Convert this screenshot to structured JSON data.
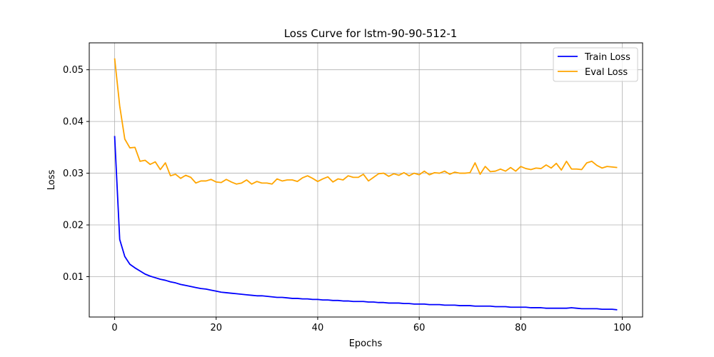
{
  "chart_data": {
    "type": "line",
    "title": "Loss Curve for lstm-90-90-512-1",
    "xlabel": "Epochs",
    "ylabel": "Loss",
    "xlim": [
      -5,
      104
    ],
    "ylim": [
      0.0022,
      0.0552
    ],
    "xticks": [
      0,
      20,
      40,
      60,
      80,
      100
    ],
    "xtick_labels": [
      "0",
      "20",
      "40",
      "60",
      "80",
      "100"
    ],
    "yticks": [
      0.01,
      0.02,
      0.03,
      0.04,
      0.05
    ],
    "ytick_labels": [
      "0.01",
      "0.02",
      "0.03",
      "0.04",
      "0.05"
    ],
    "grid": true,
    "legend_position": "top-right",
    "series": [
      {
        "name": "Train Loss",
        "color": "#0000ff",
        "x_start": 0,
        "values": [
          0.0372,
          0.0172,
          0.0139,
          0.0124,
          0.0117,
          0.0111,
          0.0105,
          0.0101,
          0.0098,
          0.0095,
          0.0093,
          0.009,
          0.0088,
          0.0085,
          0.0083,
          0.0081,
          0.0079,
          0.0077,
          0.0076,
          0.0074,
          0.0072,
          0.007,
          0.0069,
          0.0068,
          0.0067,
          0.0066,
          0.0065,
          0.0064,
          0.0063,
          0.0063,
          0.0062,
          0.0061,
          0.006,
          0.006,
          0.0059,
          0.0058,
          0.0058,
          0.0057,
          0.0057,
          0.0056,
          0.0056,
          0.0055,
          0.0055,
          0.0054,
          0.0054,
          0.0053,
          0.0053,
          0.0052,
          0.0052,
          0.0052,
          0.0051,
          0.0051,
          0.005,
          0.005,
          0.0049,
          0.0049,
          0.0049,
          0.0048,
          0.0048,
          0.0047,
          0.0047,
          0.0047,
          0.0046,
          0.0046,
          0.0046,
          0.0045,
          0.0045,
          0.0045,
          0.0044,
          0.0044,
          0.0044,
          0.0043,
          0.0043,
          0.0043,
          0.0043,
          0.0042,
          0.0042,
          0.0042,
          0.0041,
          0.0041,
          0.0041,
          0.0041,
          0.004,
          0.004,
          0.004,
          0.0039,
          0.0039,
          0.0039,
          0.0039,
          0.0039,
          0.004,
          0.0039,
          0.0038,
          0.0038,
          0.0038,
          0.0038,
          0.0037,
          0.0037,
          0.0037,
          0.0036
        ]
      },
      {
        "name": "Eval Loss",
        "color": "#ffa500",
        "x_start": 0,
        "values": [
          0.0522,
          0.043,
          0.0366,
          0.0349,
          0.035,
          0.0323,
          0.0325,
          0.0317,
          0.0322,
          0.0307,
          0.032,
          0.0295,
          0.0298,
          0.029,
          0.0296,
          0.0292,
          0.0281,
          0.0285,
          0.0285,
          0.0288,
          0.0283,
          0.0282,
          0.0288,
          0.0283,
          0.0279,
          0.0281,
          0.0287,
          0.0279,
          0.0284,
          0.0281,
          0.0281,
          0.0279,
          0.0289,
          0.0285,
          0.0287,
          0.0287,
          0.0284,
          0.0291,
          0.0295,
          0.029,
          0.0284,
          0.0289,
          0.0293,
          0.0283,
          0.0289,
          0.0287,
          0.0295,
          0.0292,
          0.0292,
          0.0298,
          0.0285,
          0.0292,
          0.0299,
          0.03,
          0.0294,
          0.0299,
          0.0296,
          0.0301,
          0.0295,
          0.03,
          0.0297,
          0.0304,
          0.0297,
          0.0301,
          0.03,
          0.0304,
          0.0298,
          0.0302,
          0.03,
          0.03,
          0.0301,
          0.032,
          0.0298,
          0.0313,
          0.0303,
          0.0304,
          0.0308,
          0.0304,
          0.0311,
          0.0304,
          0.0313,
          0.0309,
          0.0307,
          0.031,
          0.0309,
          0.0316,
          0.031,
          0.0319,
          0.0306,
          0.0323,
          0.0308,
          0.0308,
          0.0307,
          0.032,
          0.0323,
          0.0315,
          0.031,
          0.0313,
          0.0312,
          0.0311
        ]
      }
    ]
  }
}
